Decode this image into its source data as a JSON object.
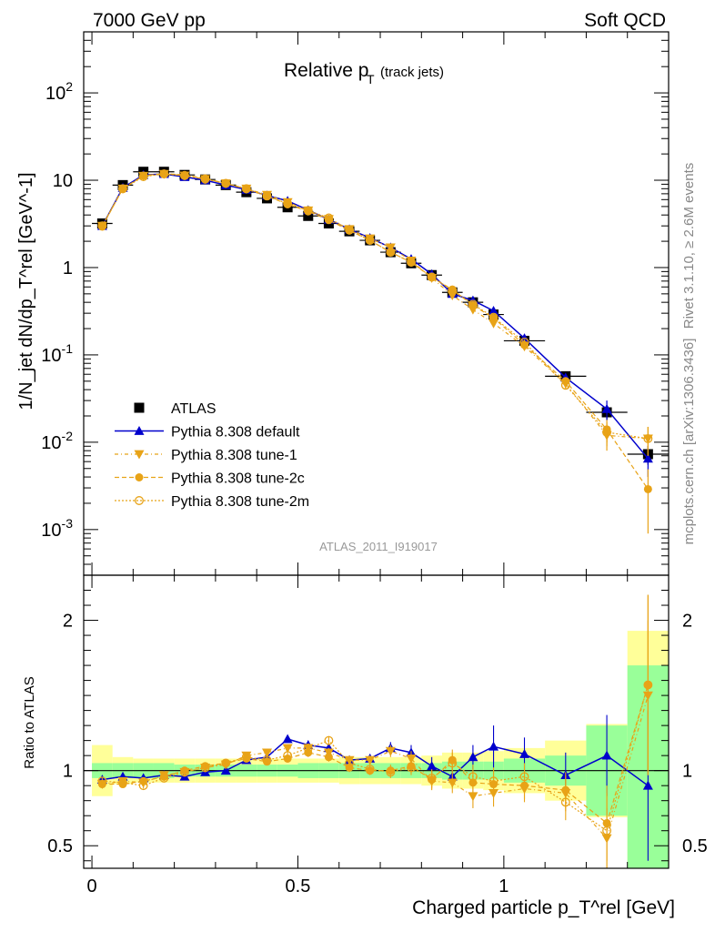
{
  "header": {
    "left": "7000 GeV pp",
    "right": "Soft QCD"
  },
  "side": {
    "rivet": "Rivet 3.1.10, ≥ 2.6M events",
    "mcplots": "mcplots.cern.ch [arXiv:1306.3436]"
  },
  "main_plot": {
    "title_main": "Relative p",
    "title_sub": "T",
    "title_suffix": "(track jets)",
    "analysis_id": "ATLAS_2011_I919017",
    "ylabel": "1/N_jet dN/dp_T^rel [GeV^-1]"
  },
  "ratio_plot": {
    "ylabel": "Ratio to ATLAS"
  },
  "xlabel": "Charged particle p_T^rel [GeV]",
  "colors": {
    "atlas": "#000000",
    "default": "#0000cc",
    "tune": "#e8a317",
    "band_inner": "#99ff99",
    "band_outer": "#ffff99"
  },
  "chart_data": [
    {
      "type": "scatter",
      "panel": "main",
      "ylog": true,
      "xlim": [
        -0.02,
        1.4
      ],
      "ylim": [
        0.0003,
        500
      ],
      "x_ticks": [
        0,
        0.5,
        1
      ],
      "x_tick_labels": [
        "0",
        "0.5",
        "1"
      ],
      "y_ticks": [
        0.001,
        0.01,
        0.1,
        1,
        10,
        100
      ],
      "y_tick_labels": [
        "10^-3",
        "10^-2",
        "10^-1",
        "1",
        "10",
        "10^2"
      ],
      "x": [
        0.025,
        0.075,
        0.125,
        0.175,
        0.225,
        0.275,
        0.325,
        0.375,
        0.425,
        0.475,
        0.525,
        0.575,
        0.625,
        0.675,
        0.725,
        0.775,
        0.825,
        0.875,
        0.925,
        0.975,
        1.05,
        1.15,
        1.25,
        1.35
      ],
      "x_halfwidth": [
        0.025,
        0.025,
        0.025,
        0.025,
        0.025,
        0.025,
        0.025,
        0.025,
        0.025,
        0.025,
        0.025,
        0.025,
        0.025,
        0.025,
        0.025,
        0.025,
        0.025,
        0.025,
        0.025,
        0.025,
        0.05,
        0.05,
        0.05,
        0.05
      ],
      "series": [
        {
          "name": "ATLAS",
          "marker": "square",
          "values": [
            3.2,
            8.8,
            12.5,
            12.5,
            11.5,
            10.2,
            8.8,
            7.3,
            6.2,
            4.9,
            3.9,
            3.2,
            2.6,
            2.05,
            1.5,
            1.12,
            0.82,
            0.52,
            0.4,
            0.29,
            0.145,
            0.057,
            0.022,
            0.0073
          ],
          "errors": [
            0.2,
            0.5,
            0.6,
            0.6,
            0.5,
            0.4,
            0.4,
            0.3,
            0.3,
            0.25,
            0.2,
            0.15,
            0.13,
            0.1,
            0.08,
            0.06,
            0.05,
            0.04,
            0.03,
            0.02,
            0.012,
            0.006,
            0.004,
            0.0018
          ]
        },
        {
          "name": "Pythia 8.308 default",
          "marker": "triangle-up",
          "values": [
            3.0,
            8.2,
            11.5,
            11.8,
            10.9,
            10.0,
            8.8,
            7.8,
            6.7,
            5.8,
            4.55,
            3.55,
            2.75,
            2.18,
            1.7,
            1.25,
            0.84,
            0.5,
            0.42,
            0.32,
            0.155,
            0.055,
            0.024,
            0.0065
          ],
          "errors": [
            0.05,
            0.1,
            0.1,
            0.1,
            0.1,
            0.1,
            0.1,
            0.08,
            0.07,
            0.06,
            0.05,
            0.04,
            0.04,
            0.03,
            0.03,
            0.03,
            0.03,
            0.03,
            0.03,
            0.03,
            0.012,
            0.006,
            0.006,
            0.0025
          ]
        },
        {
          "name": "Pythia 8.308 tune-1",
          "marker": "triangle-down",
          "values": [
            3.0,
            8.0,
            11.2,
            11.8,
            11.3,
            10.3,
            9.2,
            8.0,
            6.8,
            5.6,
            4.5,
            3.6,
            2.75,
            2.15,
            1.7,
            1.2,
            0.76,
            0.48,
            0.33,
            0.23,
            0.125,
            0.047,
            0.012,
            0.011
          ],
          "errors": [
            0.05,
            0.1,
            0.1,
            0.1,
            0.1,
            0.1,
            0.1,
            0.08,
            0.07,
            0.06,
            0.05,
            0.04,
            0.04,
            0.03,
            0.03,
            0.03,
            0.03,
            0.03,
            0.03,
            0.02,
            0.01,
            0.005,
            0.004,
            0.004
          ]
        },
        {
          "name": "Pythia 8.308 tune-2c",
          "marker": "circle",
          "values": [
            2.95,
            8.0,
            11.3,
            11.9,
            11.5,
            10.5,
            9.2,
            7.9,
            6.6,
            5.3,
            4.4,
            3.5,
            2.65,
            2.05,
            1.5,
            1.15,
            0.77,
            0.56,
            0.37,
            0.265,
            0.13,
            0.05,
            0.014,
            0.0029
          ],
          "errors": [
            0.05,
            0.1,
            0.1,
            0.1,
            0.1,
            0.1,
            0.1,
            0.08,
            0.07,
            0.06,
            0.05,
            0.04,
            0.04,
            0.03,
            0.03,
            0.03,
            0.03,
            0.03,
            0.03,
            0.02,
            0.01,
            0.005,
            0.004,
            0.002
          ]
        },
        {
          "name": "Pythia 8.308 tune-2m",
          "marker": "open-circle",
          "values": [
            3.0,
            8.0,
            11.0,
            11.8,
            11.3,
            10.3,
            9.2,
            8.0,
            6.6,
            5.4,
            4.5,
            3.7,
            2.7,
            2.05,
            1.5,
            1.15,
            0.78,
            0.55,
            0.38,
            0.27,
            0.14,
            0.045,
            0.013,
            0.011
          ],
          "errors": [
            0.05,
            0.1,
            0.1,
            0.1,
            0.1,
            0.1,
            0.1,
            0.08,
            0.07,
            0.06,
            0.05,
            0.04,
            0.04,
            0.03,
            0.03,
            0.03,
            0.03,
            0.03,
            0.03,
            0.02,
            0.01,
            0.005,
            0.004,
            0.004
          ]
        }
      ]
    },
    {
      "type": "scatter",
      "panel": "ratio",
      "xlim": [
        -0.02,
        1.4
      ],
      "ylim": [
        0.35,
        2.3
      ],
      "y_ticks": [
        0.5,
        1,
        2
      ],
      "y_tick_labels": [
        "0.5",
        "1",
        "2"
      ],
      "band_inner": [
        0.05,
        0.05,
        0.05,
        0.05,
        0.04,
        0.04,
        0.04,
        0.04,
        0.04,
        0.04,
        0.05,
        0.05,
        0.05,
        0.05,
        0.05,
        0.05,
        0.05,
        0.06,
        0.06,
        0.06,
        0.08,
        0.1,
        0.3,
        0.7
      ],
      "band_outer": [
        0.17,
        0.09,
        0.08,
        0.08,
        0.08,
        0.08,
        0.08,
        0.08,
        0.08,
        0.08,
        0.08,
        0.08,
        0.09,
        0.09,
        0.09,
        0.09,
        0.1,
        0.12,
        0.12,
        0.13,
        0.15,
        0.2,
        0.31,
        0.93
      ],
      "series": [
        {
          "name": "Pythia 8.308 default",
          "values": [
            0.94,
            0.96,
            0.95,
            0.97,
            0.96,
            0.99,
            1.0,
            1.07,
            1.09,
            1.21,
            1.17,
            1.15,
            1.07,
            1.08,
            1.15,
            1.12,
            1.03,
            0.96,
            1.09,
            1.16,
            1.11,
            0.97,
            1.1,
            0.9
          ],
          "errors": [
            0.02,
            0.02,
            0.02,
            0.02,
            0.02,
            0.02,
            0.02,
            0.02,
            0.02,
            0.02,
            0.03,
            0.03,
            0.03,
            0.03,
            0.04,
            0.05,
            0.06,
            0.07,
            0.08,
            0.14,
            0.11,
            0.15,
            0.27,
            0.5
          ]
        },
        {
          "name": "Pythia 8.308 tune-1",
          "values": [
            0.91,
            0.93,
            0.92,
            0.97,
            0.99,
            1.02,
            1.04,
            1.1,
            1.12,
            1.15,
            1.15,
            1.12,
            1.07,
            1.07,
            1.13,
            1.08,
            0.93,
            0.92,
            0.83,
            0.85,
            0.88,
            0.85,
            0.55,
            1.5
          ],
          "errors": [
            0.02,
            0.02,
            0.02,
            0.02,
            0.02,
            0.02,
            0.02,
            0.02,
            0.02,
            0.02,
            0.03,
            0.03,
            0.03,
            0.03,
            0.04,
            0.05,
            0.06,
            0.07,
            0.08,
            0.09,
            0.09,
            0.12,
            0.2,
            0.5
          ]
        },
        {
          "name": "Pythia 8.308 tune-2c",
          "values": [
            0.91,
            0.91,
            0.93,
            0.96,
            1.0,
            1.03,
            1.05,
            1.08,
            1.06,
            1.08,
            1.12,
            1.09,
            1.02,
            1.0,
            1.0,
            1.03,
            0.94,
            1.07,
            0.92,
            0.91,
            0.9,
            0.87,
            0.65,
            1.57
          ],
          "errors": [
            0.02,
            0.02,
            0.02,
            0.02,
            0.02,
            0.02,
            0.02,
            0.02,
            0.02,
            0.02,
            0.03,
            0.03,
            0.03,
            0.03,
            0.04,
            0.05,
            0.06,
            0.07,
            0.08,
            0.09,
            0.09,
            0.12,
            0.25,
            0.6
          ]
        },
        {
          "name": "Pythia 8.308 tune-2m",
          "values": [
            0.93,
            0.92,
            0.9,
            0.95,
            0.99,
            1.02,
            1.05,
            1.09,
            1.07,
            1.1,
            1.15,
            1.2,
            1.05,
            1.01,
            0.99,
            1.02,
            0.95,
            1.05,
            0.96,
            0.93,
            0.96,
            0.79,
            0.6,
            1.57
          ],
          "errors": [
            0.02,
            0.02,
            0.02,
            0.02,
            0.02,
            0.02,
            0.02,
            0.02,
            0.02,
            0.02,
            0.03,
            0.03,
            0.03,
            0.03,
            0.04,
            0.05,
            0.06,
            0.07,
            0.08,
            0.09,
            0.09,
            0.12,
            0.25,
            0.6
          ]
        }
      ]
    }
  ]
}
